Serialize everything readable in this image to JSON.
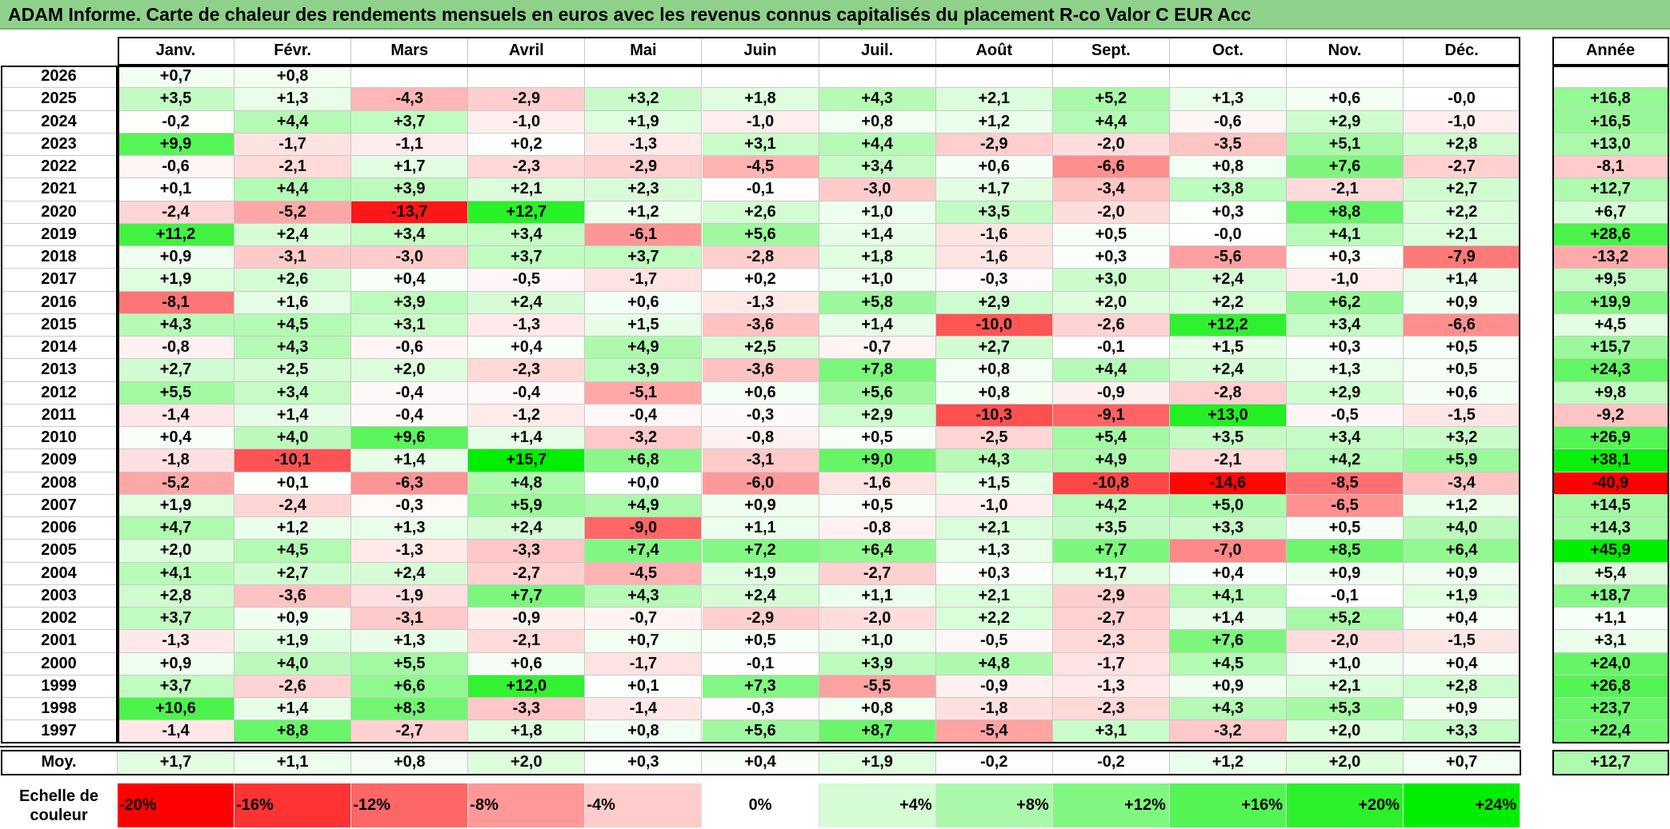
{
  "title": "ADAM Informe. Carte de chaleur des rendements mensuels en euros avec les revenus connus capitalisés du placement R-co Valor C EUR Acc",
  "chart_data": {
    "type": "heatmap",
    "months": [
      "Janv.",
      "Févr.",
      "Mars",
      "Avril",
      "Mai",
      "Juin",
      "Juil.",
      "Août",
      "Sept.",
      "Oct.",
      "Nov.",
      "Déc."
    ],
    "annual_header": "Année",
    "rows": [
      {
        "year": "2026",
        "values": [
          "+0,7",
          "+0,8",
          "",
          "",
          "",
          "",
          "",
          "",
          "",
          "",
          "",
          ""
        ],
        "annual": ""
      },
      {
        "year": "2025",
        "values": [
          "+3,5",
          "+1,3",
          "-4,3",
          "-2,9",
          "+3,2",
          "+1,8",
          "+4,3",
          "+2,1",
          "+5,2",
          "+1,3",
          "+0,6",
          "-0,0"
        ],
        "annual": "+16,8"
      },
      {
        "year": "2024",
        "values": [
          "-0,2",
          "+4,4",
          "+3,7",
          "-1,0",
          "+1,9",
          "-1,0",
          "+0,8",
          "+1,2",
          "+4,4",
          "-0,6",
          "+2,9",
          "-1,0"
        ],
        "annual": "+16,5"
      },
      {
        "year": "2023",
        "values": [
          "+9,9",
          "-1,7",
          "-1,1",
          "+0,2",
          "-1,3",
          "+3,1",
          "+4,4",
          "-2,9",
          "-2,0",
          "-3,5",
          "+5,1",
          "+2,8"
        ],
        "annual": "+13,0"
      },
      {
        "year": "2022",
        "values": [
          "-0,6",
          "-2,1",
          "+1,7",
          "-2,3",
          "-2,9",
          "-4,5",
          "+3,4",
          "+0,6",
          "-6,6",
          "+0,8",
          "+7,6",
          "-2,7"
        ],
        "annual": "-8,1"
      },
      {
        "year": "2021",
        "values": [
          "+0,1",
          "+4,4",
          "+3,9",
          "+2,1",
          "+2,3",
          "-0,1",
          "-3,0",
          "+1,7",
          "-3,4",
          "+3,8",
          "-2,1",
          "+2,7"
        ],
        "annual": "+12,7"
      },
      {
        "year": "2020",
        "values": [
          "-2,4",
          "-5,2",
          "-13,7",
          "+12,7",
          "+1,2",
          "+2,6",
          "+1,0",
          "+3,5",
          "-2,0",
          "+0,3",
          "+8,8",
          "+2,2"
        ],
        "annual": "+6,7"
      },
      {
        "year": "2019",
        "values": [
          "+11,2",
          "+2,4",
          "+3,4",
          "+3,4",
          "-6,1",
          "+5,6",
          "+1,4",
          "-1,6",
          "+0,5",
          "-0,0",
          "+4,1",
          "+2,1"
        ],
        "annual": "+28,6"
      },
      {
        "year": "2018",
        "values": [
          "+0,9",
          "-3,1",
          "-3,0",
          "+3,7",
          "+3,7",
          "-2,8",
          "+1,8",
          "-1,6",
          "+0,3",
          "-5,6",
          "+0,3",
          "-7,9"
        ],
        "annual": "-13,2"
      },
      {
        "year": "2017",
        "values": [
          "+1,9",
          "+2,6",
          "+0,4",
          "-0,5",
          "-1,7",
          "+0,2",
          "+1,0",
          "-0,3",
          "+3,0",
          "+2,4",
          "-1,0",
          "+1,4"
        ],
        "annual": "+9,5"
      },
      {
        "year": "2016",
        "values": [
          "-8,1",
          "+1,6",
          "+3,9",
          "+2,4",
          "+0,6",
          "-1,3",
          "+5,8",
          "+2,9",
          "+2,0",
          "+2,2",
          "+6,2",
          "+0,9"
        ],
        "annual": "+19,9"
      },
      {
        "year": "2015",
        "values": [
          "+4,3",
          "+4,5",
          "+3,1",
          "-1,3",
          "+1,5",
          "-3,6",
          "+1,4",
          "-10,0",
          "-2,6",
          "+12,2",
          "+3,4",
          "-6,6"
        ],
        "annual": "+4,5"
      },
      {
        "year": "2014",
        "values": [
          "-0,8",
          "+4,3",
          "-0,6",
          "+0,4",
          "+4,9",
          "+2,5",
          "-0,7",
          "+2,7",
          "-0,1",
          "+1,5",
          "+0,3",
          "+0,5"
        ],
        "annual": "+15,7"
      },
      {
        "year": "2013",
        "values": [
          "+2,7",
          "+2,5",
          "+2,0",
          "-2,3",
          "+3,9",
          "-3,6",
          "+7,8",
          "+0,8",
          "+4,4",
          "+2,4",
          "+1,3",
          "+0,5"
        ],
        "annual": "+24,3"
      },
      {
        "year": "2012",
        "values": [
          "+5,5",
          "+3,4",
          "-0,4",
          "-0,4",
          "-5,1",
          "+0,6",
          "+5,6",
          "+0,8",
          "-0,9",
          "-2,8",
          "+2,9",
          "+0,6"
        ],
        "annual": "+9,8"
      },
      {
        "year": "2011",
        "values": [
          "-1,4",
          "+1,4",
          "-0,4",
          "-1,2",
          "-0,4",
          "-0,3",
          "+2,9",
          "-10,3",
          "-9,1",
          "+13,0",
          "-0,5",
          "-1,5"
        ],
        "annual": "-9,2"
      },
      {
        "year": "2010",
        "values": [
          "+0,4",
          "+4,0",
          "+9,6",
          "+1,4",
          "-3,2",
          "-0,8",
          "+0,5",
          "-2,5",
          "+5,4",
          "+3,5",
          "+3,4",
          "+3,2"
        ],
        "annual": "+26,9"
      },
      {
        "year": "2009",
        "values": [
          "-1,8",
          "-10,1",
          "+1,4",
          "+15,7",
          "+6,8",
          "-3,1",
          "+9,0",
          "+4,3",
          "+4,9",
          "-2,1",
          "+4,2",
          "+5,9"
        ],
        "annual": "+38,1"
      },
      {
        "year": "2008",
        "values": [
          "-5,2",
          "+0,1",
          "-6,3",
          "+4,8",
          "+0,0",
          "-6,0",
          "-1,6",
          "+1,5",
          "-10,8",
          "-14,6",
          "-8,5",
          "-3,4"
        ],
        "annual": "-40,9"
      },
      {
        "year": "2007",
        "values": [
          "+1,9",
          "-2,4",
          "-0,3",
          "+5,9",
          "+4,9",
          "+0,9",
          "+0,5",
          "-1,0",
          "+4,2",
          "+5,0",
          "-6,5",
          "+1,2"
        ],
        "annual": "+14,5"
      },
      {
        "year": "2006",
        "values": [
          "+4,7",
          "+1,2",
          "+1,3",
          "+2,4",
          "-9,0",
          "+1,1",
          "-0,8",
          "+2,1",
          "+3,5",
          "+3,3",
          "+0,5",
          "+4,0"
        ],
        "annual": "+14,3"
      },
      {
        "year": "2005",
        "values": [
          "+2,0",
          "+4,5",
          "-1,3",
          "-3,3",
          "+7,4",
          "+7,2",
          "+6,4",
          "+1,3",
          "+7,7",
          "-7,0",
          "+8,5",
          "+6,4"
        ],
        "annual": "+45,9"
      },
      {
        "year": "2004",
        "values": [
          "+4,1",
          "+2,7",
          "+2,4",
          "-2,7",
          "-4,5",
          "+1,9",
          "-2,7",
          "+0,3",
          "+1,7",
          "+0,4",
          "+0,9",
          "+0,9"
        ],
        "annual": "+5,4"
      },
      {
        "year": "2003",
        "values": [
          "+2,8",
          "-3,6",
          "-1,9",
          "+7,7",
          "+4,3",
          "+2,4",
          "+1,1",
          "+2,1",
          "-2,9",
          "+4,1",
          "-0,1",
          "+1,9"
        ],
        "annual": "+18,7"
      },
      {
        "year": "2002",
        "values": [
          "+3,7",
          "+0,9",
          "-3,1",
          "-0,9",
          "-0,7",
          "-2,9",
          "-2,0",
          "+2,2",
          "-2,7",
          "+1,4",
          "+5,2",
          "+0,4"
        ],
        "annual": "+1,1"
      },
      {
        "year": "2001",
        "values": [
          "-1,3",
          "+1,9",
          "+1,3",
          "-2,1",
          "+0,7",
          "+0,5",
          "+1,0",
          "-0,5",
          "-2,3",
          "+7,6",
          "-2,0",
          "-1,5"
        ],
        "annual": "+3,1"
      },
      {
        "year": "2000",
        "values": [
          "+0,9",
          "+4,0",
          "+5,5",
          "+0,6",
          "-1,7",
          "-0,1",
          "+3,9",
          "+4,8",
          "-1,7",
          "+4,5",
          "+1,0",
          "+0,4"
        ],
        "annual": "+24,0"
      },
      {
        "year": "1999",
        "values": [
          "+3,7",
          "-2,6",
          "+6,6",
          "+12,0",
          "+0,1",
          "+7,3",
          "-5,5",
          "-0,9",
          "-1,3",
          "+0,9",
          "+2,1",
          "+2,8"
        ],
        "annual": "+26,8"
      },
      {
        "year": "1998",
        "values": [
          "+10,6",
          "+1,4",
          "+8,3",
          "-3,3",
          "-1,4",
          "-0,3",
          "+0,8",
          "-1,8",
          "-2,3",
          "+4,3",
          "+5,3",
          "+0,9"
        ],
        "annual": "+23,7"
      },
      {
        "year": "1997",
        "values": [
          "-1,4",
          "+8,8",
          "-2,7",
          "+1,8",
          "+0,8",
          "+5,6",
          "+8,7",
          "-5,4",
          "+3,1",
          "-3,2",
          "+2,0",
          "+3,3"
        ],
        "annual": "+22,4"
      }
    ],
    "average": {
      "label": "Moy.",
      "values": [
        "+1,7",
        "+1,1",
        "+0,8",
        "+2,0",
        "+0,3",
        "+0,4",
        "+1,9",
        "-0,2",
        "-0,2",
        "+1,2",
        "+2,0",
        "+0,7"
      ],
      "annual": "+12,7"
    },
    "scale": {
      "label": "Echelle de couleur",
      "stops": [
        "-20%",
        "-16%",
        "-12%",
        "-8%",
        "-4%",
        "0%",
        "+4%",
        "+8%",
        "+12%",
        "+16%",
        "+20%",
        "+24%"
      ],
      "levels": [
        -20,
        -16,
        -12,
        -8,
        -4,
        0,
        4,
        8,
        12,
        16,
        20,
        24
      ]
    },
    "colors": {
      "negative_max": "#ff0000",
      "neutral": "#ffffff",
      "positive_max": "#00ee00",
      "title_bg": "#8fd18a"
    }
  }
}
